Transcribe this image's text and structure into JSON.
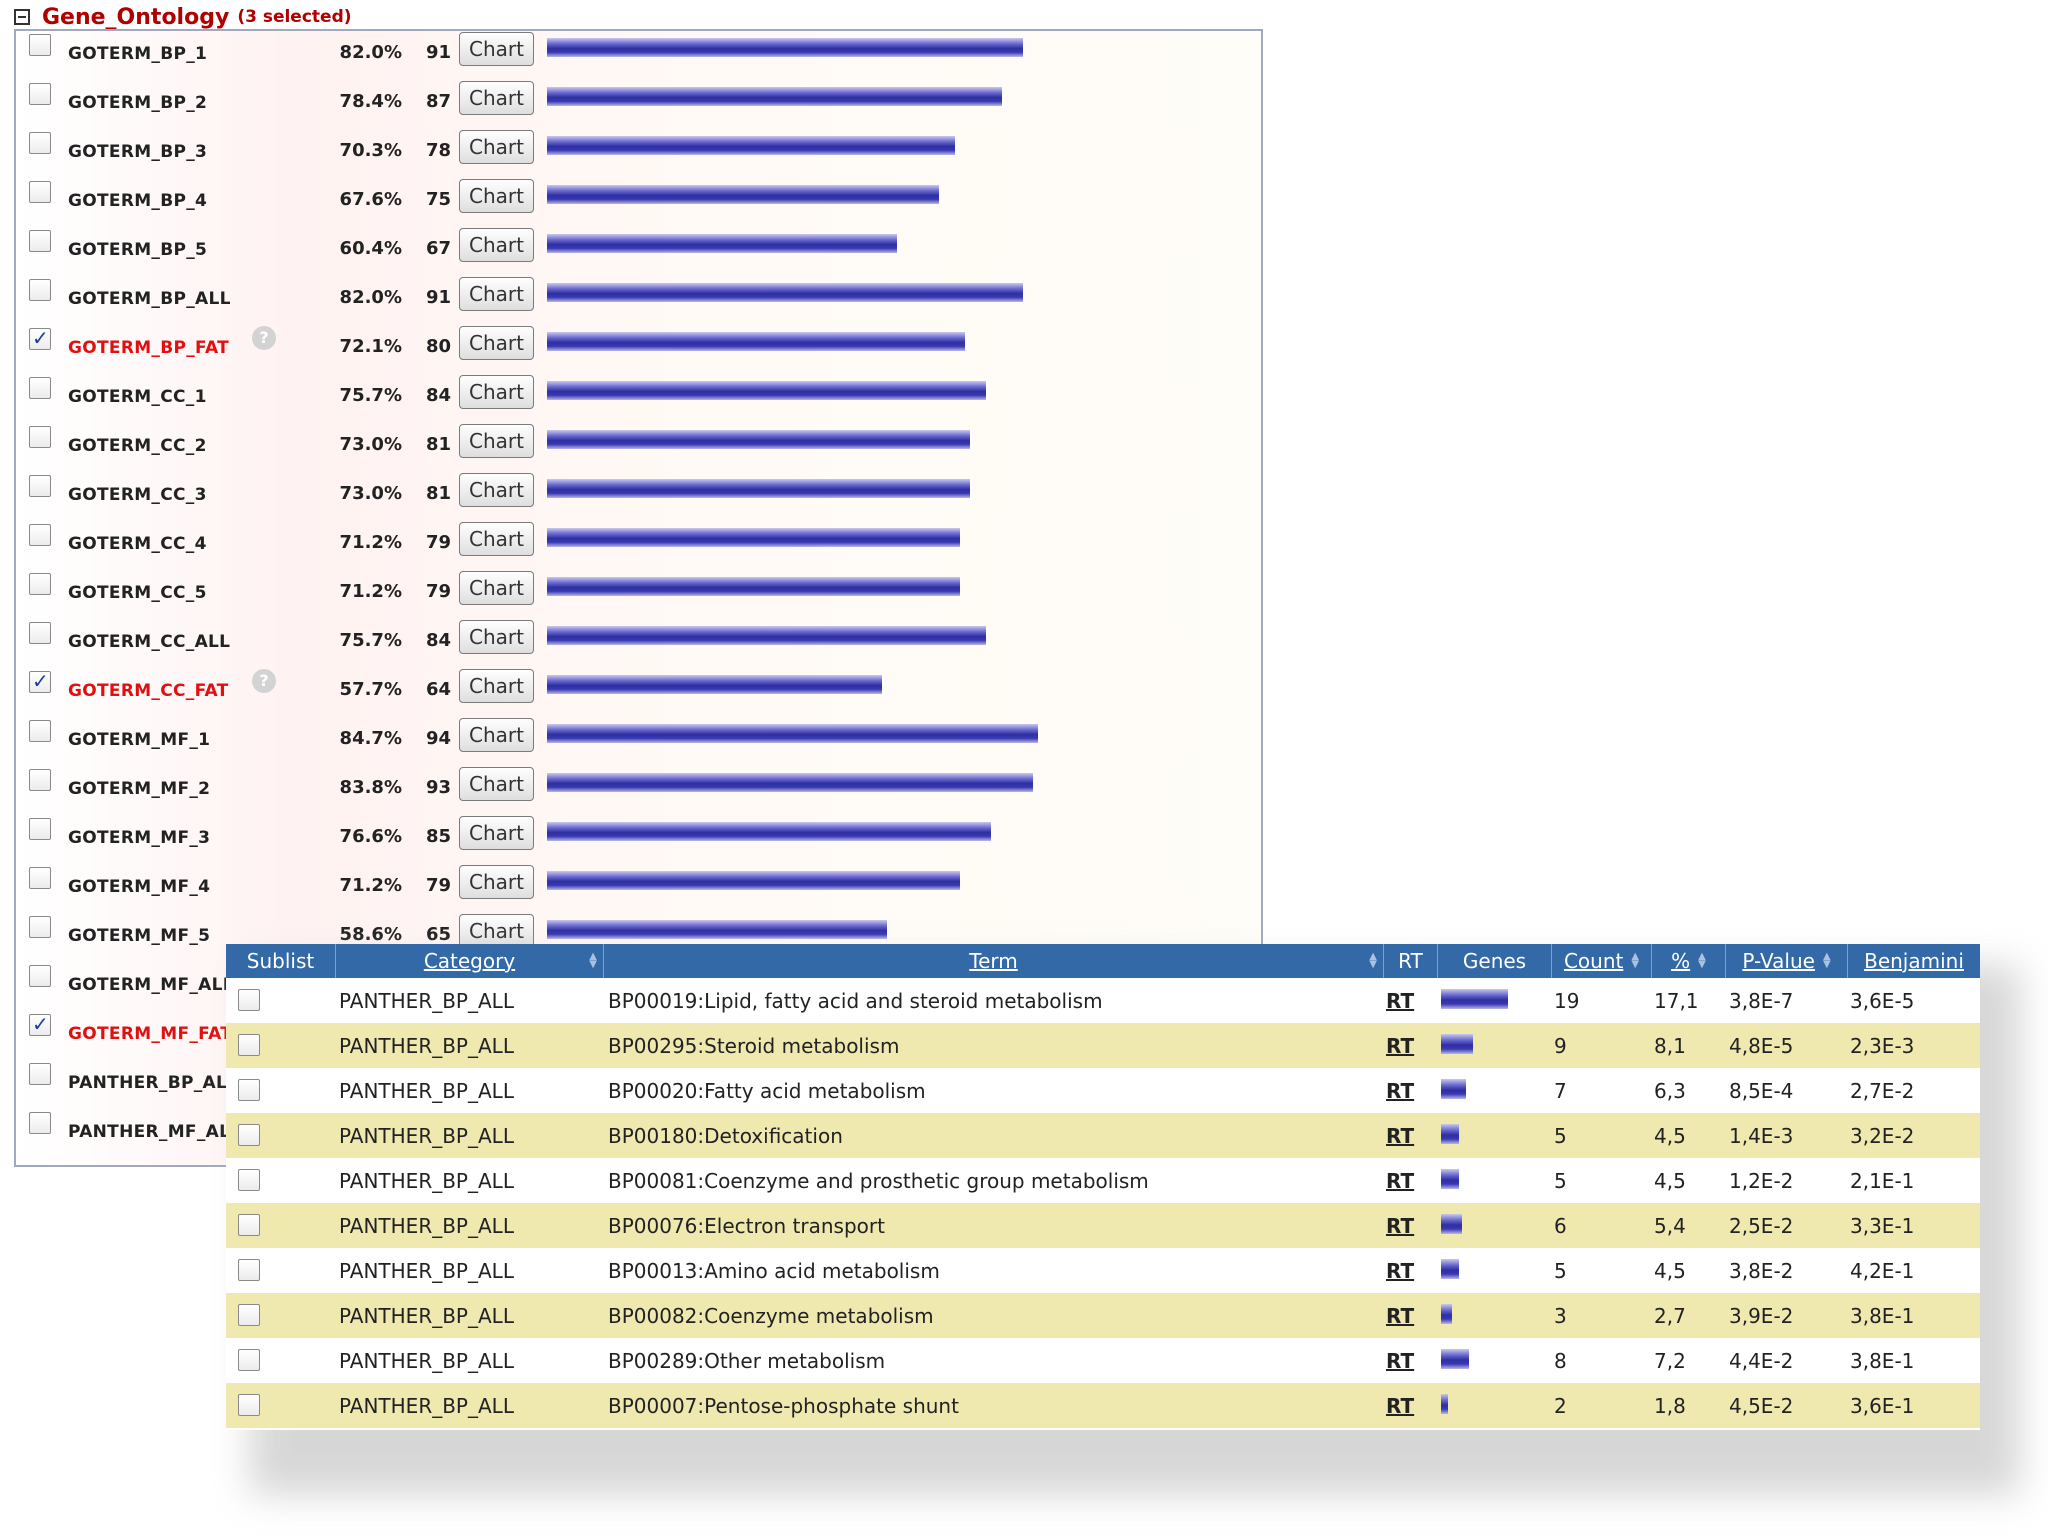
{
  "gene_ontology": {
    "title": "Gene_Ontology",
    "selected_text": "(3 selected)",
    "chart_button_label": "Chart",
    "help_glyph": "?",
    "rows": [
      {
        "label": "GOTERM_BP_1",
        "percent": "82.0%",
        "count": "91",
        "fraction": 0.82,
        "checked": false
      },
      {
        "label": "GOTERM_BP_2",
        "percent": "78.4%",
        "count": "87",
        "fraction": 0.784,
        "checked": false
      },
      {
        "label": "GOTERM_BP_3",
        "percent": "70.3%",
        "count": "78",
        "fraction": 0.703,
        "checked": false
      },
      {
        "label": "GOTERM_BP_4",
        "percent": "67.6%",
        "count": "75",
        "fraction": 0.676,
        "checked": false
      },
      {
        "label": "GOTERM_BP_5",
        "percent": "60.4%",
        "count": "67",
        "fraction": 0.604,
        "checked": false
      },
      {
        "label": "GOTERM_BP_ALL",
        "percent": "82.0%",
        "count": "91",
        "fraction": 0.82,
        "checked": false
      },
      {
        "label": "GOTERM_BP_FAT",
        "percent": "72.1%",
        "count": "80",
        "fraction": 0.721,
        "checked": true
      },
      {
        "label": "GOTERM_CC_1",
        "percent": "75.7%",
        "count": "84",
        "fraction": 0.757,
        "checked": false
      },
      {
        "label": "GOTERM_CC_2",
        "percent": "73.0%",
        "count": "81",
        "fraction": 0.73,
        "checked": false
      },
      {
        "label": "GOTERM_CC_3",
        "percent": "73.0%",
        "count": "81",
        "fraction": 0.73,
        "checked": false
      },
      {
        "label": "GOTERM_CC_4",
        "percent": "71.2%",
        "count": "79",
        "fraction": 0.712,
        "checked": false
      },
      {
        "label": "GOTERM_CC_5",
        "percent": "71.2%",
        "count": "79",
        "fraction": 0.712,
        "checked": false
      },
      {
        "label": "GOTERM_CC_ALL",
        "percent": "75.7%",
        "count": "84",
        "fraction": 0.757,
        "checked": false
      },
      {
        "label": "GOTERM_CC_FAT",
        "percent": "57.7%",
        "count": "64",
        "fraction": 0.577,
        "checked": true
      },
      {
        "label": "GOTERM_MF_1",
        "percent": "84.7%",
        "count": "94",
        "fraction": 0.847,
        "checked": false
      },
      {
        "label": "GOTERM_MF_2",
        "percent": "83.8%",
        "count": "93",
        "fraction": 0.838,
        "checked": false
      },
      {
        "label": "GOTERM_MF_3",
        "percent": "76.6%",
        "count": "85",
        "fraction": 0.766,
        "checked": false
      },
      {
        "label": "GOTERM_MF_4",
        "percent": "71.2%",
        "count": "79",
        "fraction": 0.712,
        "checked": false
      },
      {
        "label": "GOTERM_MF_5",
        "percent": "58.6%",
        "count": "65",
        "fraction": 0.586,
        "checked": false
      },
      {
        "label": "GOTERM_MF_ALL",
        "percent": "",
        "count": "",
        "fraction": null,
        "checked": false
      },
      {
        "label": "GOTERM_MF_FAT",
        "percent": "",
        "count": "",
        "fraction": null,
        "checked": true
      },
      {
        "label": "PANTHER_BP_ALL",
        "percent": "",
        "count": "",
        "fraction": null,
        "checked": false
      },
      {
        "label": "PANTHER_MF_ALL",
        "percent": "",
        "count": "",
        "fraction": null,
        "checked": false
      }
    ]
  },
  "results_table": {
    "headers": {
      "sublist": "Sublist",
      "category": "Category",
      "term": "Term",
      "rt": "RT",
      "genes": "Genes",
      "count": "Count",
      "percent": "%",
      "p_value": "P-Value",
      "benjamini": "Benjamini"
    },
    "rt_link_label": "RT",
    "rows": [
      {
        "category": "PANTHER_BP_ALL",
        "term": "BP00019:Lipid, fatty acid and steroid metabolism",
        "count": "19",
        "percent": "17,1",
        "p_value": "3,8E-7",
        "benjamini": "3,6E-5"
      },
      {
        "category": "PANTHER_BP_ALL",
        "term": "BP00295:Steroid metabolism",
        "count": "9",
        "percent": "8,1",
        "p_value": "4,8E-5",
        "benjamini": "2,3E-3"
      },
      {
        "category": "PANTHER_BP_ALL",
        "term": "BP00020:Fatty acid metabolism",
        "count": "7",
        "percent": "6,3",
        "p_value": "8,5E-4",
        "benjamini": "2,7E-2"
      },
      {
        "category": "PANTHER_BP_ALL",
        "term": "BP00180:Detoxification",
        "count": "5",
        "percent": "4,5",
        "p_value": "1,4E-3",
        "benjamini": "3,2E-2"
      },
      {
        "category": "PANTHER_BP_ALL",
        "term": "BP00081:Coenzyme and prosthetic group metabolism",
        "count": "5",
        "percent": "4,5",
        "p_value": "1,2E-2",
        "benjamini": "2,1E-1"
      },
      {
        "category": "PANTHER_BP_ALL",
        "term": "BP00076:Electron transport",
        "count": "6",
        "percent": "5,4",
        "p_value": "2,5E-2",
        "benjamini": "3,3E-1"
      },
      {
        "category": "PANTHER_BP_ALL",
        "term": "BP00013:Amino acid metabolism",
        "count": "5",
        "percent": "4,5",
        "p_value": "3,8E-2",
        "benjamini": "4,2E-1"
      },
      {
        "category": "PANTHER_BP_ALL",
        "term": "BP00082:Coenzyme metabolism",
        "count": "3",
        "percent": "2,7",
        "p_value": "3,9E-2",
        "benjamini": "3,8E-1"
      },
      {
        "category": "PANTHER_BP_ALL",
        "term": "BP00289:Other metabolism",
        "count": "8",
        "percent": "7,2",
        "p_value": "4,4E-2",
        "benjamini": "3,8E-1"
      },
      {
        "category": "PANTHER_BP_ALL",
        "term": "BP00007:Pentose-phosphate shunt",
        "count": "2",
        "percent": "1,8",
        "p_value": "4,5E-2",
        "benjamini": "3,6E-1"
      }
    ]
  },
  "colors": {
    "title_red": "#b00000",
    "selected_red": "#e01010",
    "header_blue": "#3269a6",
    "row_highlight": "#efe9b0",
    "link_blue": "#1a2eb8",
    "bar_blue": "#2f2fa2"
  }
}
